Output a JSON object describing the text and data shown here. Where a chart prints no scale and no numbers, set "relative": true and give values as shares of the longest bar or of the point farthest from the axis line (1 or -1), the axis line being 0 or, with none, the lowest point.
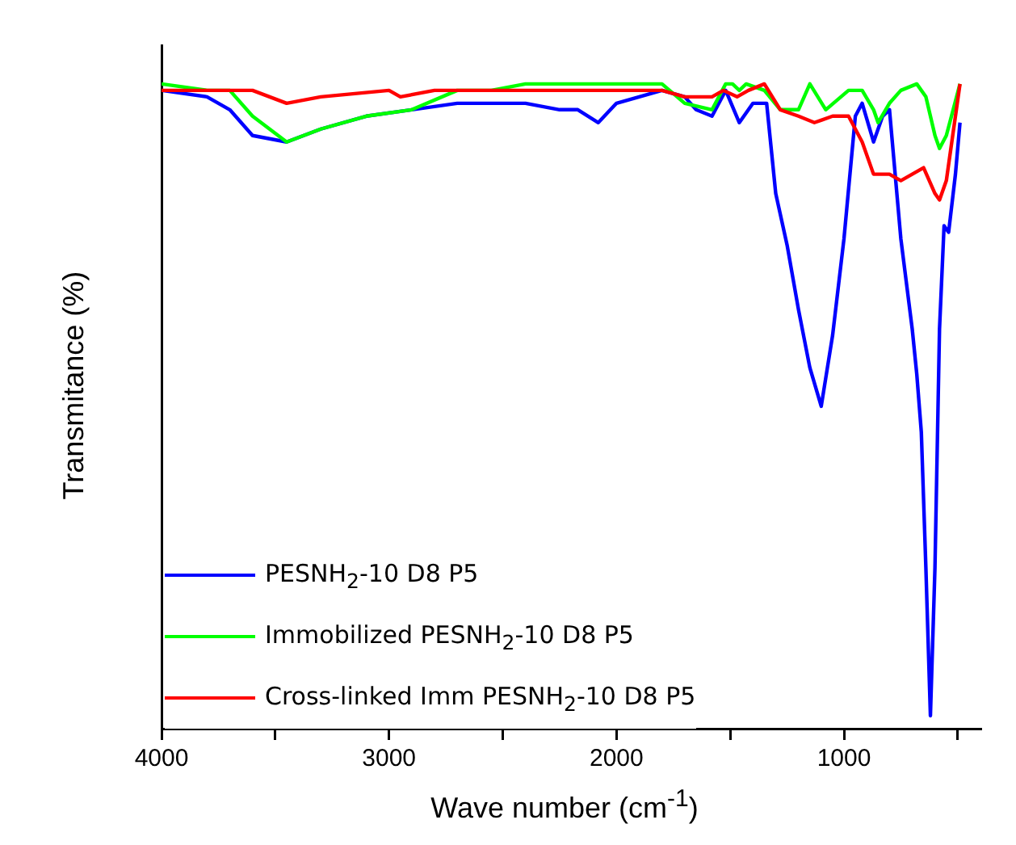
{
  "chart_data": {
    "type": "line",
    "xlabel": "Wave number (cm$^{-1}$)",
    "ylabel": "Transmitance (%)",
    "relative": true,
    "xlim": [
      4000,
      400
    ],
    "xticks": [
      4000,
      {
        "value": 3500,
        "label": null
      },
      3000,
      {
        "value": 2500,
        "label": null
      },
      2000,
      {
        "value": 1500,
        "label": null
      },
      1000,
      {
        "value": 500,
        "label": null
      }
    ],
    "grid": false,
    "legend": "bottom left",
    "marker": "none",
    "line_style": "solid",
    "series": [
      {
        "name": "PESNH$_{2}$-10 D8 P5",
        "color": "#0000ff",
        "x": [
          4000,
          3800,
          3700,
          3600,
          3450,
          3300,
          3100,
          2900,
          2700,
          2400,
          2250,
          2170,
          2080,
          2000,
          1800,
          1700,
          1650,
          1580,
          1520,
          1460,
          1400,
          1340,
          1300,
          1250,
          1200,
          1150,
          1100,
          1050,
          1000,
          950,
          920,
          870,
          830,
          800,
          750,
          700,
          680,
          660,
          640,
          620,
          600,
          580,
          560,
          540,
          510,
          490
        ],
        "values": [
          0.99,
          0.98,
          0.96,
          0.92,
          0.91,
          0.93,
          0.95,
          0.96,
          0.97,
          0.97,
          0.96,
          0.96,
          0.94,
          0.97,
          0.99,
          0.98,
          0.96,
          0.95,
          0.99,
          0.94,
          0.97,
          0.97,
          0.83,
          0.75,
          0.65,
          0.56,
          0.5,
          0.61,
          0.76,
          0.95,
          0.97,
          0.91,
          0.95,
          0.96,
          0.76,
          0.62,
          0.55,
          0.46,
          0.25,
          0.02,
          0.25,
          0.62,
          0.78,
          0.77,
          0.86,
          0.94
        ]
      },
      {
        "name": "Immobilized PESNH$_{2}$-10 D8 P5",
        "color": "#00ff00",
        "x": [
          4000,
          3800,
          3700,
          3600,
          3450,
          3300,
          3100,
          2900,
          2700,
          2550,
          2400,
          2000,
          1800,
          1700,
          1580,
          1520,
          1490,
          1460,
          1430,
          1350,
          1280,
          1200,
          1150,
          1080,
          980,
          920,
          870,
          850,
          800,
          750,
          680,
          640,
          600,
          580,
          550,
          490
        ],
        "values": [
          1.0,
          0.99,
          0.99,
          0.95,
          0.91,
          0.93,
          0.95,
          0.96,
          0.99,
          0.99,
          1.0,
          1.0,
          1.0,
          0.97,
          0.96,
          1.0,
          1.0,
          0.99,
          1.0,
          0.99,
          0.96,
          0.96,
          1.0,
          0.96,
          0.99,
          0.99,
          0.96,
          0.94,
          0.97,
          0.99,
          1.0,
          0.98,
          0.92,
          0.9,
          0.92,
          1.0
        ]
      },
      {
        "name": "Cross-linked Imm PESNH$_{2}$-10 D8 P5",
        "color": "#ff0000",
        "x": [
          4000,
          3700,
          3600,
          3450,
          3300,
          3000,
          2950,
          2800,
          2000,
          1800,
          1700,
          1620,
          1580,
          1530,
          1470,
          1420,
          1350,
          1280,
          1200,
          1130,
          1050,
          980,
          920,
          870,
          800,
          750,
          700,
          650,
          600,
          580,
          550,
          490
        ],
        "values": [
          0.99,
          0.99,
          0.99,
          0.97,
          0.98,
          0.99,
          0.98,
          0.99,
          0.99,
          0.99,
          0.98,
          0.98,
          0.98,
          0.99,
          0.98,
          0.99,
          1.0,
          0.96,
          0.95,
          0.94,
          0.95,
          0.95,
          0.91,
          0.86,
          0.86,
          0.85,
          0.86,
          0.87,
          0.83,
          0.82,
          0.85,
          1.0
        ]
      }
    ]
  }
}
